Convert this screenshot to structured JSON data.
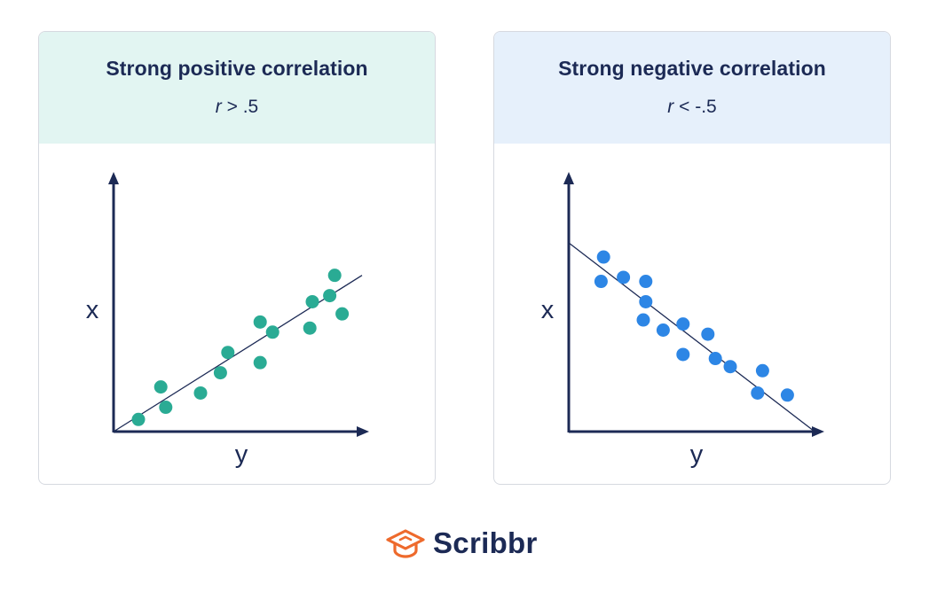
{
  "colors": {
    "navy": "#1c2a55",
    "teal": "#2aab94",
    "blue": "#2d86e5",
    "header_teal": "#e2f5f2",
    "header_blue": "#e6f0fb",
    "logo_orange": "#ee6a2c"
  },
  "chart_data": [
    {
      "type": "scatter",
      "title": "Strong positive correlation",
      "subtitle_var": "r",
      "subtitle_rest": " > .5",
      "xlabel": "y",
      "ylabel": "x",
      "xlim": [
        0,
        10
      ],
      "ylim": [
        0,
        10
      ],
      "grid": false,
      "point_color": "#2aab94",
      "header_color": "#e2f5f2",
      "points": [
        {
          "x": 1.0,
          "y": 0.6
        },
        {
          "x": 1.9,
          "y": 2.2
        },
        {
          "x": 2.1,
          "y": 1.2
        },
        {
          "x": 3.5,
          "y": 1.9
        },
        {
          "x": 4.3,
          "y": 2.9
        },
        {
          "x": 4.6,
          "y": 3.9
        },
        {
          "x": 5.9,
          "y": 3.4
        },
        {
          "x": 5.9,
          "y": 5.4
        },
        {
          "x": 6.4,
          "y": 4.9
        },
        {
          "x": 7.9,
          "y": 5.1
        },
        {
          "x": 8.0,
          "y": 6.4
        },
        {
          "x": 8.7,
          "y": 6.7
        },
        {
          "x": 8.9,
          "y": 7.7
        },
        {
          "x": 9.2,
          "y": 5.8
        }
      ],
      "trendline": [
        {
          "x": 0,
          "y": 0
        },
        {
          "x": 10,
          "y": 7.7
        }
      ]
    },
    {
      "type": "scatter",
      "title": "Strong negative correlation",
      "subtitle_var": "r",
      "subtitle_rest": " < -.5",
      "xlabel": "y",
      "ylabel": "x",
      "xlim": [
        0,
        10
      ],
      "ylim": [
        0,
        10
      ],
      "grid": false,
      "point_color": "#2d86e5",
      "header_color": "#e6f0fb",
      "points": [
        {
          "x": 1.4,
          "y": 8.6
        },
        {
          "x": 1.3,
          "y": 7.4
        },
        {
          "x": 2.2,
          "y": 7.6
        },
        {
          "x": 3.1,
          "y": 7.4
        },
        {
          "x": 3.1,
          "y": 6.4
        },
        {
          "x": 3.0,
          "y": 5.5
        },
        {
          "x": 3.8,
          "y": 5.0
        },
        {
          "x": 4.6,
          "y": 5.3
        },
        {
          "x": 5.6,
          "y": 4.8
        },
        {
          "x": 4.6,
          "y": 3.8
        },
        {
          "x": 5.9,
          "y": 3.6
        },
        {
          "x": 6.5,
          "y": 3.2
        },
        {
          "x": 7.8,
          "y": 3.0
        },
        {
          "x": 7.6,
          "y": 1.9
        },
        {
          "x": 8.8,
          "y": 1.8
        }
      ],
      "trendline": [
        {
          "x": 0,
          "y": 9.3
        },
        {
          "x": 9.9,
          "y": 0
        }
      ]
    }
  ],
  "logo": {
    "text": "Scribbr",
    "icon": "graduation-cap-icon"
  }
}
